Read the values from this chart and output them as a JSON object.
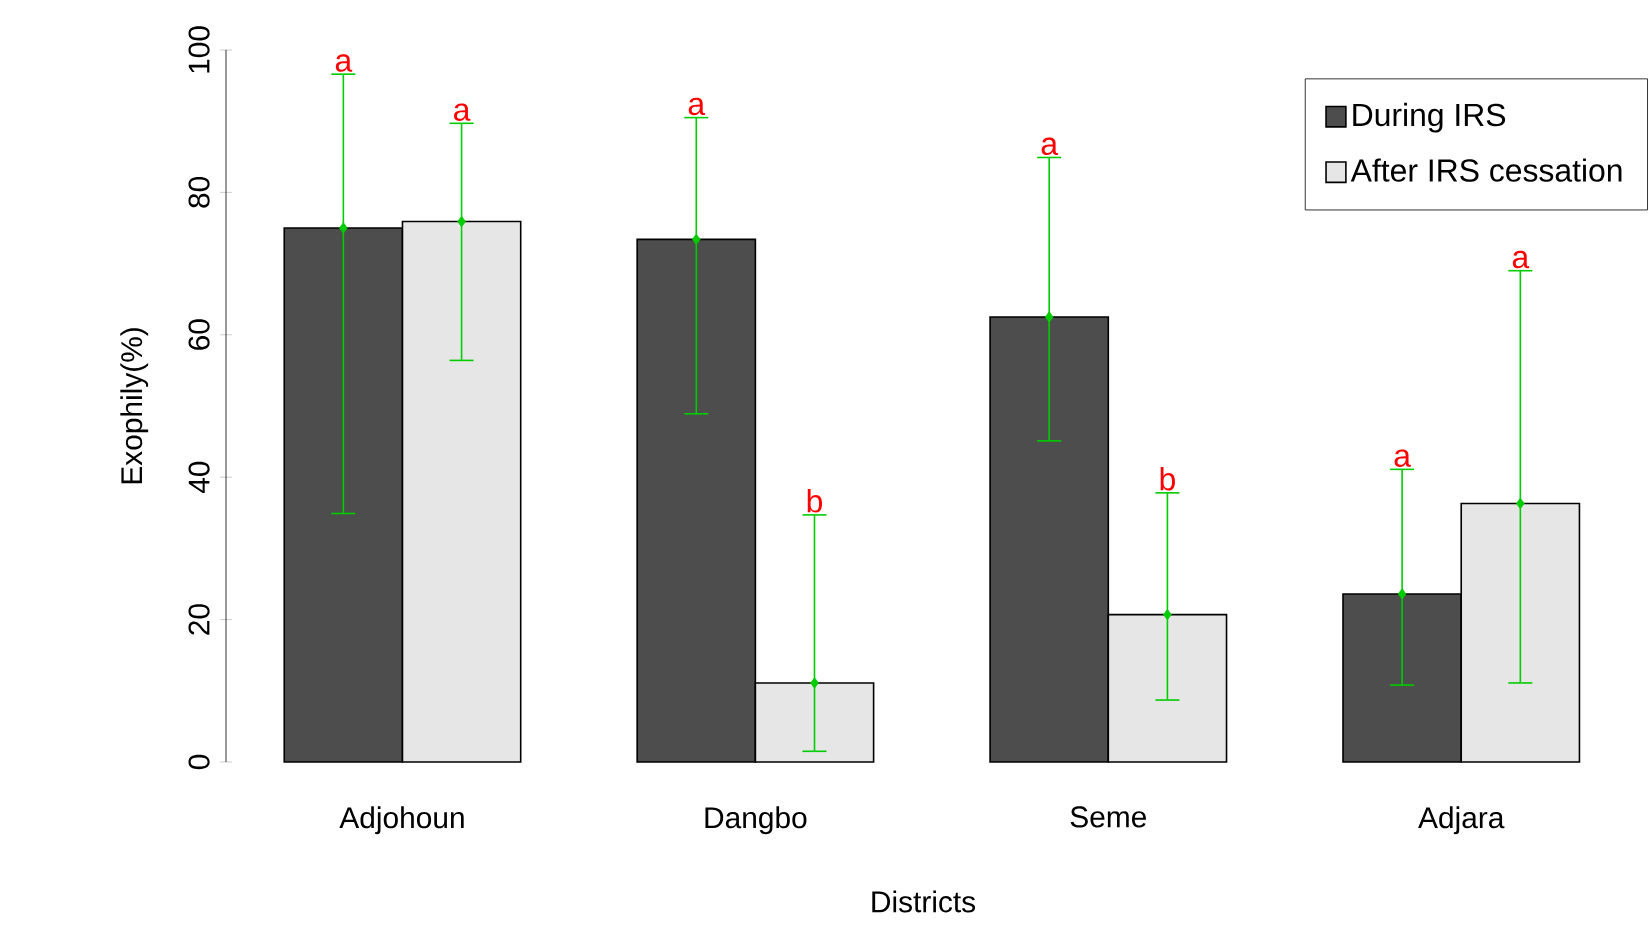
{
  "chart_data": {
    "type": "bar",
    "xlabel": "Districts",
    "ylabel": "Exophily(%)",
    "categories": [
      "Adjohoun",
      "Dangbo",
      "Seme",
      "Adjara"
    ],
    "series": [
      {
        "name": "During IRS",
        "color": "#4d4d4d",
        "values": [
          75.0,
          73.4,
          62.5,
          23.6
        ]
      },
      {
        "name": "After IRS cessation",
        "color": "#e6e6e6",
        "values": [
          75.9,
          11.1,
          20.7,
          36.3
        ]
      },
      {
        "type": "scatter",
        "color": "#00cc00",
        "x": [
          "Adjohoun",
          "Dangbo",
          "Seme",
          "Adjara"
        ],
        "values": [
          75.0,
          73.4,
          62.5,
          23.6
        ],
        "errors": [
          [
            34.9,
            96.6
          ],
          [
            48.9,
            90.5
          ],
          [
            45.1,
            84.9
          ],
          [
            10.8,
            41.1
          ]
        ]
      },
      {
        "type": "scatter",
        "color": "#00cc00",
        "x": [
          "Adjohoun",
          "Dangbo",
          "Seme",
          "Adjara"
        ],
        "values": [
          75.9,
          11.1,
          20.7,
          36.3
        ],
        "errors": [
          [
            56.4,
            89.7
          ],
          [
            1.5,
            34.7
          ],
          [
            8.7,
            37.8
          ],
          [
            11.1,
            69.0
          ]
        ]
      }
    ],
    "ylim": [
      0,
      100
    ],
    "yticks": [
      0,
      20,
      40,
      60,
      80,
      100
    ],
    "grid": false,
    "legend": "top right",
    "marker": "diamond",
    "annotations": [
      "a",
      "a",
      "a",
      "b",
      "a",
      "b",
      "a",
      "a"
    ]
  }
}
